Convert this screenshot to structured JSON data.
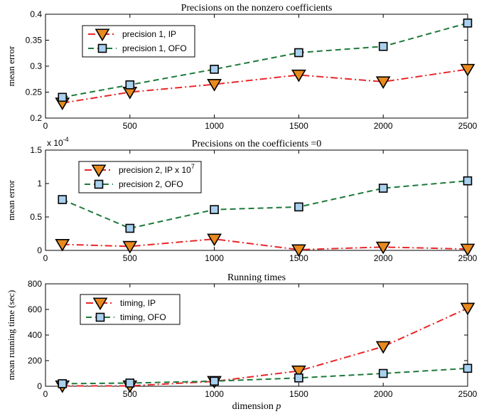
{
  "colors": {
    "ip": "#e8262a",
    "ofo": "#1d7a3a",
    "ip_marker": "#e98a1e",
    "ofo_marker": "#a9d0ef",
    "axis": "#000000"
  },
  "chart_data": [
    {
      "type": "line",
      "title": "Precisions on the nonzero coefficients",
      "xlabel": "",
      "ylabel": "mean error",
      "xlim": [
        0,
        2500
      ],
      "ylim": [
        0.2,
        0.4
      ],
      "xticks": [
        "0",
        "500",
        "1000",
        "1500",
        "2000",
        "2500"
      ],
      "yticks": [
        "0.2",
        "0.25",
        "0.3",
        "0.35",
        "0.4"
      ],
      "exponent_label": "",
      "legend_position": "top-left",
      "x": [
        100,
        500,
        1000,
        1500,
        2000,
        2500
      ],
      "series": [
        {
          "name": "precision 1, IP",
          "values": [
            0.229,
            0.25,
            0.265,
            0.283,
            0.27,
            0.294
          ]
        },
        {
          "name": "precision 1, OFO",
          "values": [
            0.24,
            0.264,
            0.294,
            0.326,
            0.338,
            0.383
          ]
        }
      ]
    },
    {
      "type": "line",
      "title": "Precisions on the coefficients =0",
      "xlabel": "",
      "ylabel": "mean error",
      "xlim": [
        0,
        2500
      ],
      "ylim": [
        0,
        1.5
      ],
      "xticks": [
        "0",
        "500",
        "1000",
        "1500",
        "2000",
        "2500"
      ],
      "yticks": [
        "0",
        "0.5",
        "1",
        "1.5"
      ],
      "exponent_label": "x 10",
      "exponent_power": "-4",
      "legend_position": "top-left",
      "legend_superscript": "7",
      "x": [
        100,
        500,
        1000,
        1500,
        2000,
        2500
      ],
      "series": [
        {
          "name": "precision 2, IP x 10",
          "values": [
            0.09,
            0.06,
            0.17,
            0.01,
            0.05,
            0.02
          ]
        },
        {
          "name": "precision 2, OFO",
          "values": [
            0.76,
            0.33,
            0.61,
            0.65,
            0.93,
            1.04
          ]
        }
      ]
    },
    {
      "type": "line",
      "title": "Running times",
      "xlabel": "dimension",
      "xlabel_var": "p",
      "ylabel": "mean running time (sec)",
      "xlim": [
        0,
        2500
      ],
      "ylim": [
        0,
        800
      ],
      "xticks": [
        "0",
        "500",
        "1000",
        "1500",
        "2000",
        "2500"
      ],
      "yticks": [
        "0",
        "200",
        "400",
        "600",
        "800"
      ],
      "exponent_label": "",
      "legend_position": "top-left",
      "x": [
        100,
        500,
        1000,
        1500,
        2000,
        2500
      ],
      "series": [
        {
          "name": "timing, IP",
          "values": [
            3,
            3,
            38,
            120,
            310,
            610
          ]
        },
        {
          "name": "timing, OFO",
          "values": [
            20,
            25,
            40,
            65,
            100,
            140
          ]
        }
      ]
    }
  ]
}
